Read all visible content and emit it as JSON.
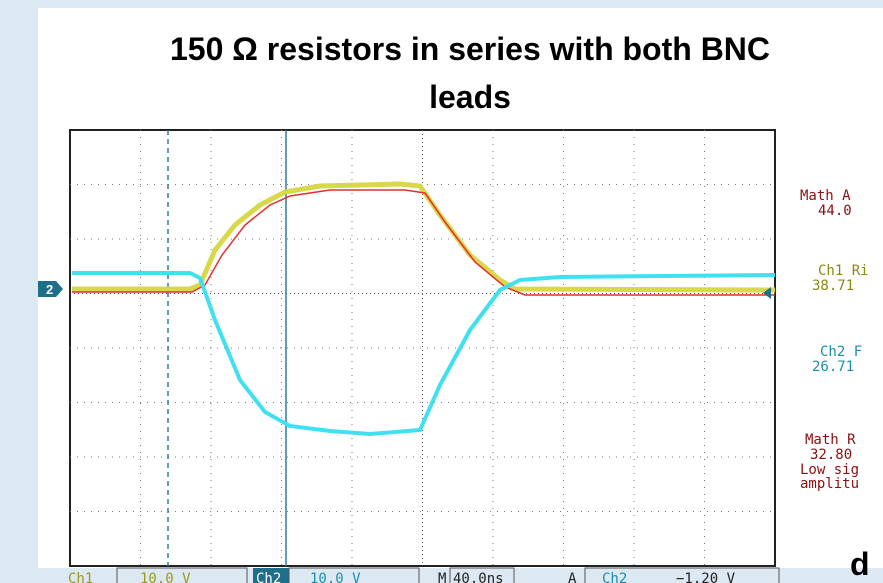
{
  "title": {
    "line1": "150 Ω resistors in series with both BNC",
    "line2": "leads"
  },
  "scope": {
    "ground_marker": "2",
    "status": {
      "ch1": "Ch1",
      "ch1_scale": "10.0 V",
      "ch2": "Ch2",
      "ch2_scale": "10.0 V",
      "m": "M",
      "timebase": "40.0ns",
      "a": "A",
      "trigger_source": "Ch2",
      "trigger_level": "−1.20 V"
    }
  },
  "measurements": [
    {
      "name": "Math A",
      "value": "44.0"
    },
    {
      "name": "Ch1 Ri",
      "value": "38.71"
    },
    {
      "name": "Ch2 F",
      "value": "26.71"
    },
    {
      "name": "Math R",
      "value": "32.80",
      "note1": "Low sig",
      "note2": "amplitu"
    }
  ],
  "panel_label": "d"
}
